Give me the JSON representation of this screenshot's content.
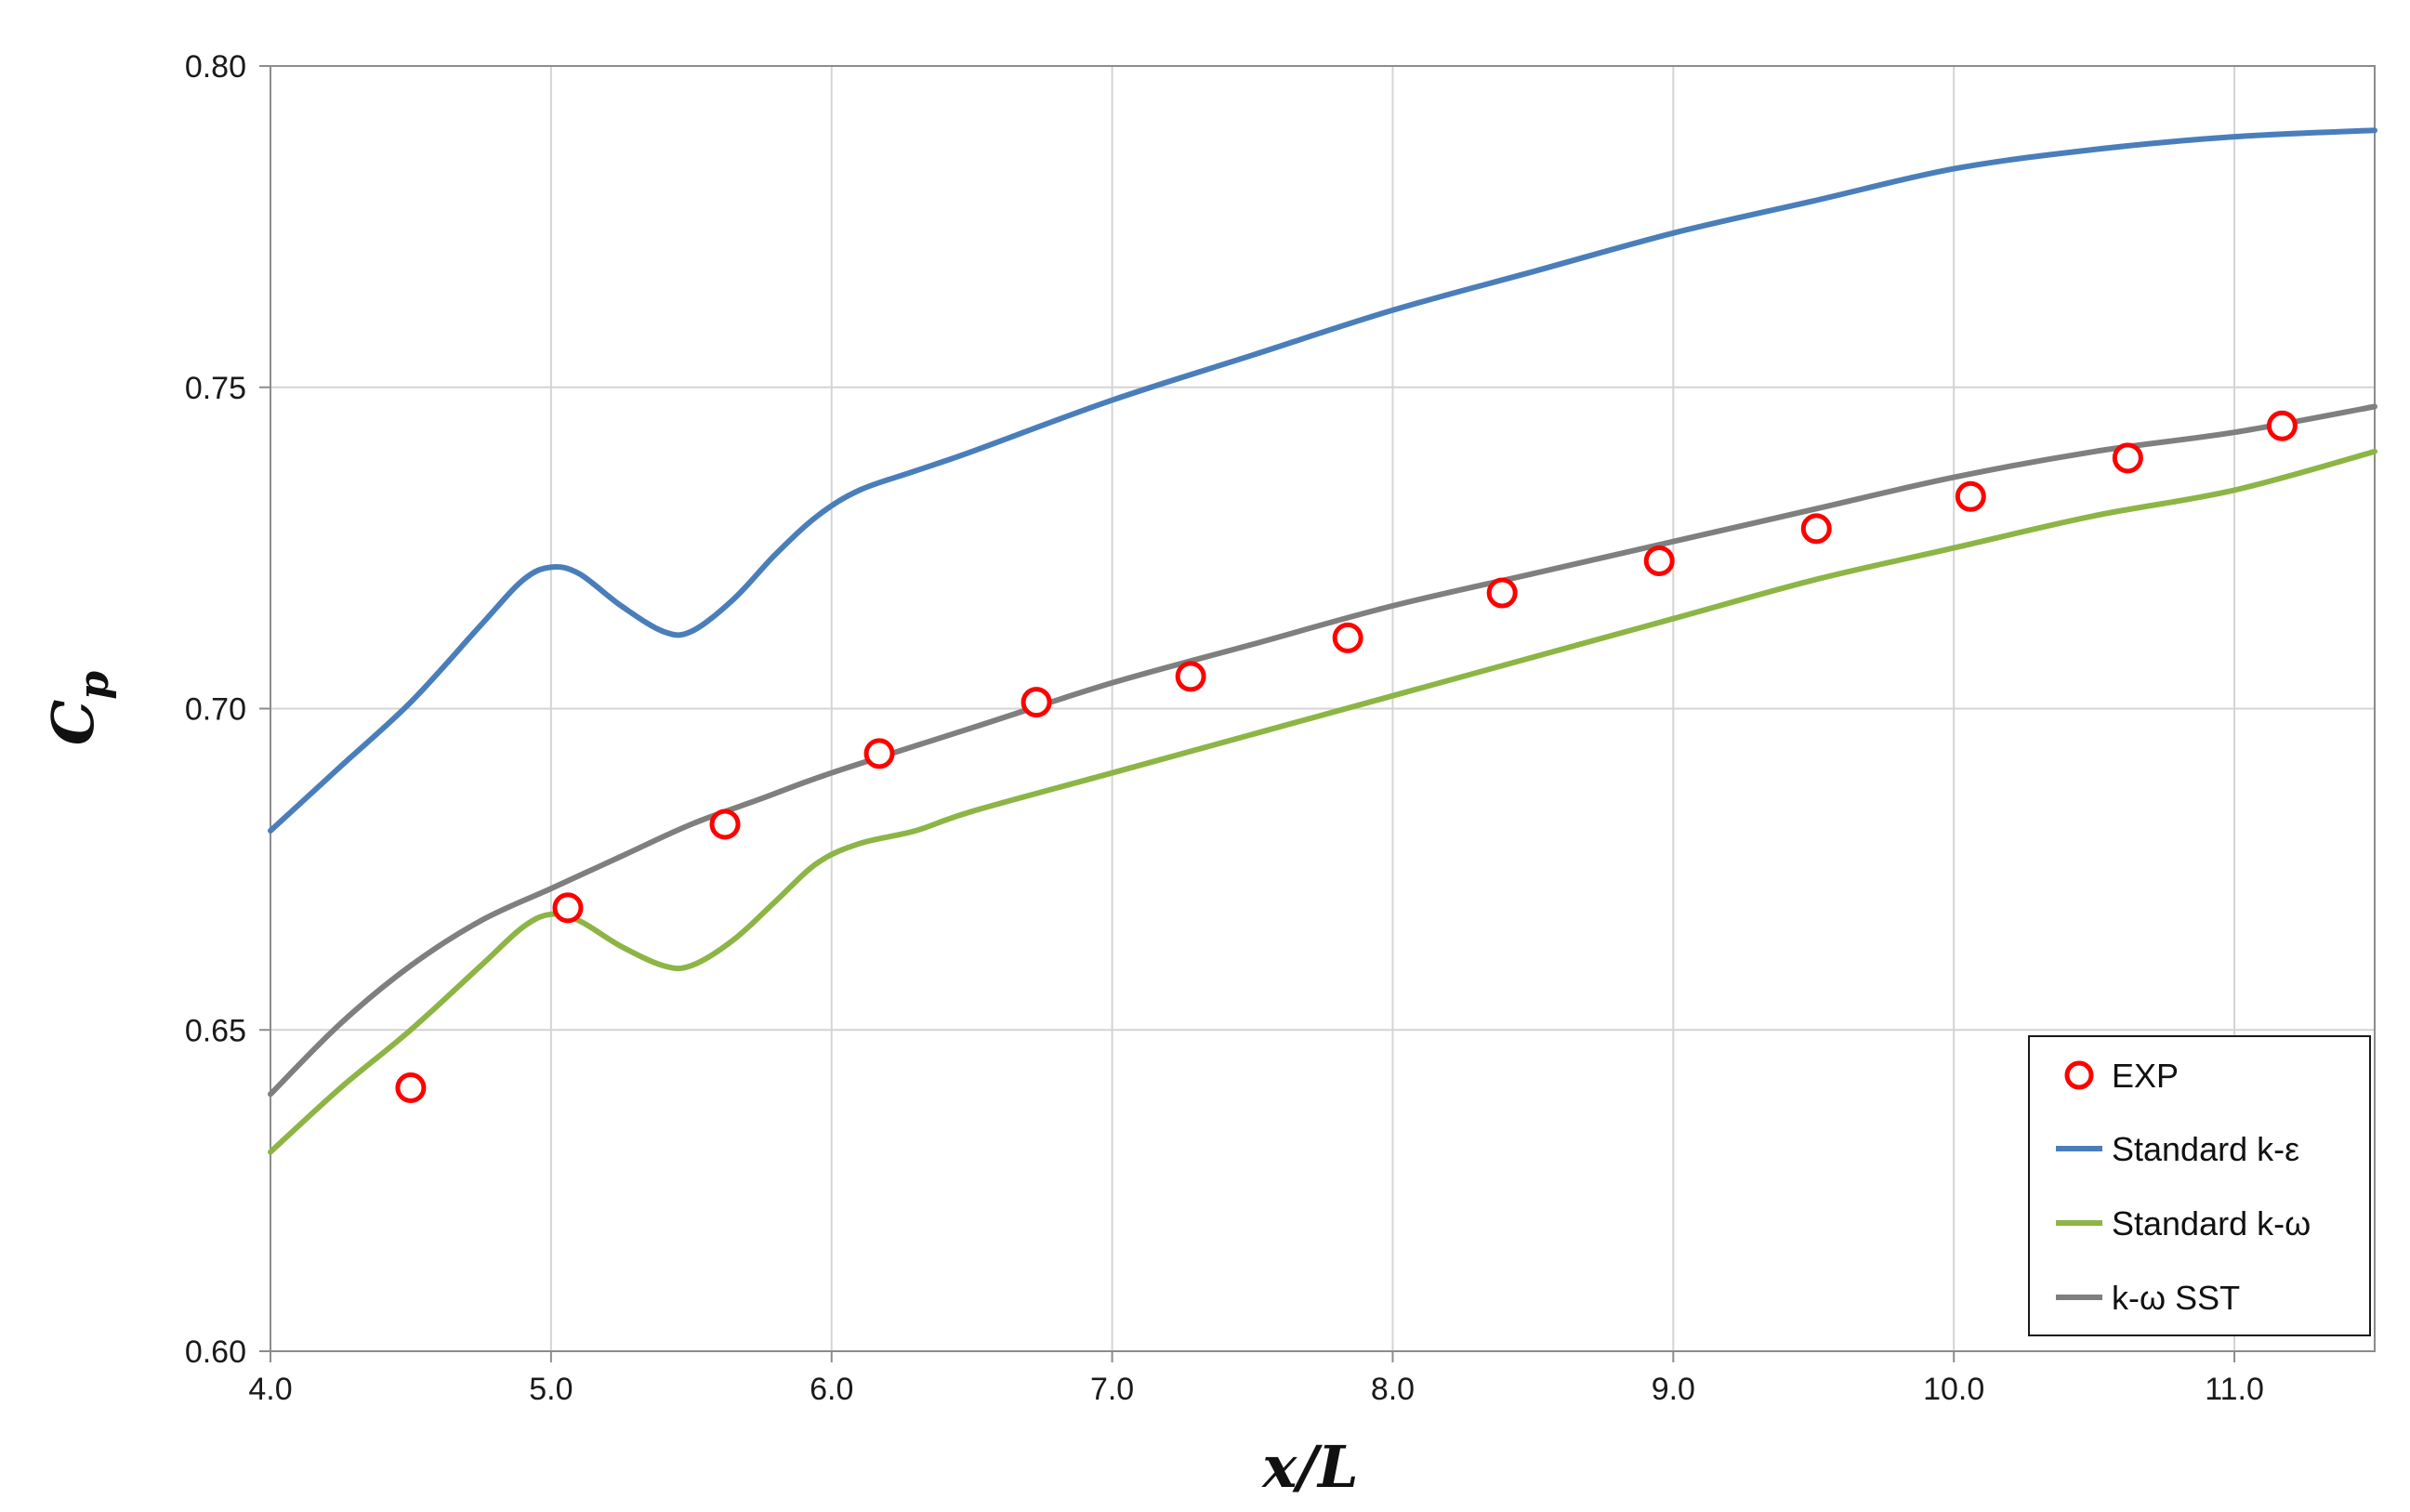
{
  "chart_data": {
    "type": "line",
    "xlabel": "x/L",
    "ylabel": "C",
    "ylabel_sub": "p",
    "xlim": [
      4.0,
      11.5
    ],
    "ylim": [
      0.6,
      0.8
    ],
    "xticks": [
      4.0,
      5.0,
      6.0,
      7.0,
      8.0,
      9.0,
      10.0,
      11.0
    ],
    "xtick_labels": [
      "4.0",
      "5.0",
      "6.0",
      "7.0",
      "8.0",
      "9.0",
      "10.0",
      "11.0"
    ],
    "yticks": [
      0.6,
      0.65,
      0.7,
      0.75,
      0.8
    ],
    "ytick_labels": [
      "0.60",
      "0.65",
      "0.70",
      "0.75",
      "0.80"
    ],
    "grid": true,
    "legend_position": "bottom-right",
    "series": [
      {
        "name": "EXP",
        "kind": "markers",
        "color": "#ff0000",
        "x": [
          4.5,
          5.06,
          5.62,
          6.17,
          6.73,
          7.28,
          7.84,
          8.39,
          8.95,
          9.51,
          10.06,
          10.62,
          11.17
        ],
        "y": [
          0.641,
          0.669,
          0.682,
          0.693,
          0.701,
          0.705,
          0.711,
          0.718,
          0.723,
          0.728,
          0.733,
          0.739,
          0.744
        ]
      },
      {
        "name": "Standard k-ε",
        "kind": "line",
        "color": "#4a7ebb",
        "x": [
          4.0,
          4.25,
          4.5,
          4.75,
          4.9,
          5.0,
          5.1,
          5.25,
          5.4,
          5.5,
          5.65,
          5.8,
          5.95,
          6.1,
          6.3,
          6.5,
          7.0,
          7.5,
          8.0,
          8.5,
          9.0,
          9.5,
          10.0,
          10.5,
          11.0,
          11.5
        ],
        "y": [
          0.681,
          0.691,
          0.701,
          0.713,
          0.72,
          0.722,
          0.721,
          0.716,
          0.712,
          0.712,
          0.717,
          0.724,
          0.73,
          0.734,
          0.737,
          0.74,
          0.748,
          0.755,
          0.762,
          0.768,
          0.774,
          0.779,
          0.784,
          0.787,
          0.789,
          0.79
        ]
      },
      {
        "name": "Standard k-ω",
        "kind": "line",
        "color": "#8db545",
        "x": [
          4.0,
          4.25,
          4.5,
          4.75,
          4.9,
          5.0,
          5.1,
          5.25,
          5.4,
          5.5,
          5.65,
          5.8,
          5.95,
          6.1,
          6.3,
          6.5,
          7.0,
          7.5,
          8.0,
          8.5,
          9.0,
          9.5,
          10.0,
          10.5,
          11.0,
          11.5
        ],
        "y": [
          0.631,
          0.641,
          0.65,
          0.66,
          0.666,
          0.668,
          0.667,
          0.663,
          0.66,
          0.66,
          0.664,
          0.67,
          0.676,
          0.679,
          0.681,
          0.684,
          0.69,
          0.696,
          0.702,
          0.708,
          0.714,
          0.72,
          0.725,
          0.73,
          0.734,
          0.74
        ]
      },
      {
        "name": "k-ω SST",
        "kind": "line",
        "color": "#7f7f7f",
        "x": [
          4.0,
          4.25,
          4.5,
          4.75,
          5.0,
          5.25,
          5.5,
          5.75,
          6.0,
          6.5,
          7.0,
          7.5,
          8.0,
          8.5,
          9.0,
          9.5,
          10.0,
          10.5,
          11.0,
          11.5
        ],
        "y": [
          0.64,
          0.651,
          0.66,
          0.667,
          0.672,
          0.677,
          0.682,
          0.686,
          0.69,
          0.697,
          0.704,
          0.71,
          0.716,
          0.721,
          0.726,
          0.731,
          0.736,
          0.74,
          0.743,
          0.747
        ]
      }
    ]
  }
}
